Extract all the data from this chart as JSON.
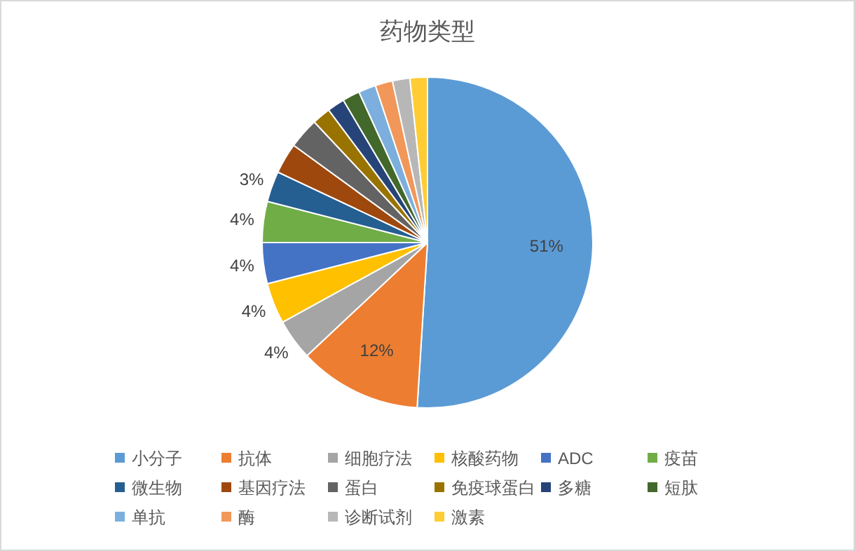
{
  "chart_data": {
    "type": "pie",
    "title": "药物类型",
    "categories": [
      "小分子",
      "抗体",
      "细胞疗法",
      "核酸药物",
      "ADC",
      "疫苗",
      "微生物",
      "基因疗法",
      "蛋白",
      "免疫球蛋白",
      "多糖",
      "短肽",
      "单抗",
      "酶",
      "诊断试剂",
      "激素"
    ],
    "values": [
      51,
      12,
      4,
      4,
      4,
      4,
      3,
      3,
      3,
      1.8,
      1.7,
      1.7,
      1.7,
      1.7,
      1.7,
      1.7
    ],
    "colors": [
      "#5b9bd5",
      "#ed7d31",
      "#a5a5a5",
      "#ffc000",
      "#4472c4",
      "#70ad47",
      "#255e91",
      "#9e480e",
      "#636363",
      "#997300",
      "#264478",
      "#43682b",
      "#7cafdd",
      "#f1975a",
      "#b7b7b7",
      "#ffcd33"
    ],
    "value_labels": [
      "51%",
      "12%",
      "4%",
      "4%",
      "4%",
      "4%",
      "3%",
      null,
      null,
      null,
      null,
      null,
      null,
      null,
      null,
      null
    ],
    "legend": "bottom"
  }
}
